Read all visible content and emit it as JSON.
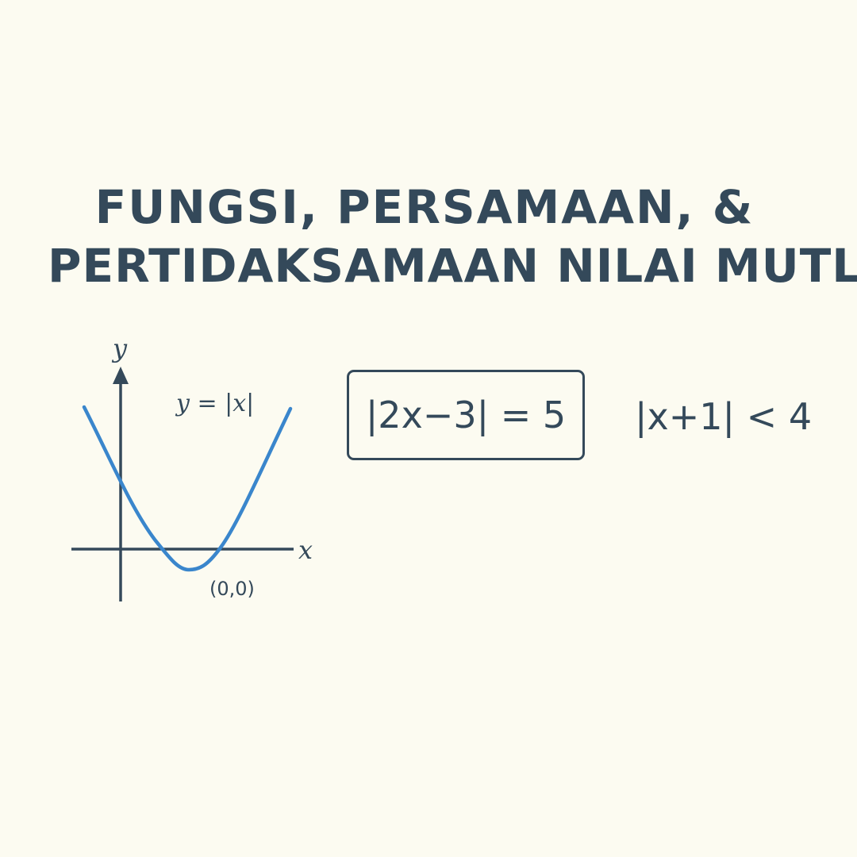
{
  "title": {
    "line1": "FUNGSI, PERSAMAAN, &",
    "line2": "PERTIDAKSAMAAN NILAI MUTLAK"
  },
  "graph": {
    "y_axis_label": "y",
    "x_axis_label": "x",
    "function_label": "y = |x|",
    "origin_label": "(0,0)",
    "curve_color": "#3a86cc",
    "axis_color": "#34495a"
  },
  "equation": {
    "text": "|2x−3| = 5"
  },
  "inequality": {
    "text": "|x+1| < 4"
  }
}
